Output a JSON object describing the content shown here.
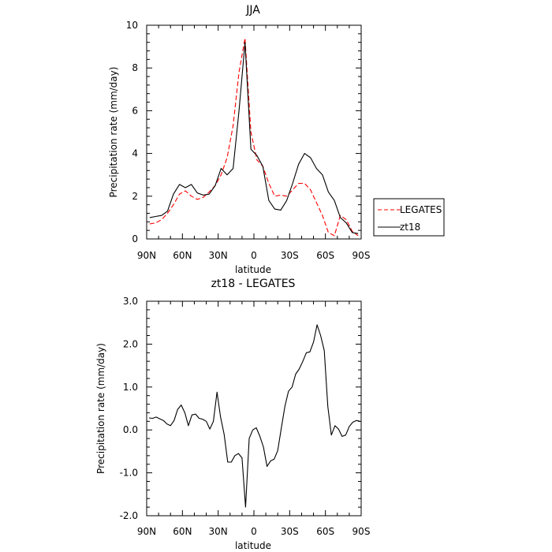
{
  "chart_data": [
    {
      "type": "line",
      "title": "JJA",
      "xlabel": "latitude",
      "ylabel": "Precipitation rate (mm/day)",
      "xlim": [
        90,
        -90
      ],
      "ylim": [
        0,
        10
      ],
      "xticks": [
        90,
        60,
        30,
        0,
        -30,
        -60,
        -90
      ],
      "xticklabels": [
        "90N",
        "60N",
        "30N",
        "0",
        "30S",
        "60S",
        "90S"
      ],
      "yticks": [
        0,
        2,
        4,
        6,
        8,
        10
      ],
      "yticklabels": [
        "0",
        "2",
        "4",
        "6",
        "8",
        "10"
      ],
      "legend_position": "right",
      "series": [
        {
          "name": "LEGATES",
          "color": "#ff0000",
          "style": "dashed",
          "x": [
            87.5,
            82.5,
            77.5,
            72.5,
            67.5,
            62.5,
            57.5,
            52.5,
            47.5,
            42.5,
            37.5,
            32.5,
            27.5,
            22.5,
            17.5,
            12.5,
            7.5,
            2.5,
            -2.5,
            -7.5,
            -12.5,
            -17.5,
            -22.5,
            -27.5,
            -32.5,
            -37.5,
            -42.5,
            -47.5,
            -52.5,
            -57.5,
            -62.5,
            -67.5,
            -72.5,
            -77.5,
            -82.5,
            -87.5
          ],
          "y": [
            0.7,
            0.75,
            0.9,
            1.2,
            1.6,
            2.1,
            2.25,
            2.0,
            1.85,
            1.95,
            2.2,
            2.5,
            3.0,
            3.8,
            5.3,
            7.8,
            9.4,
            5.0,
            3.7,
            3.4,
            2.6,
            2.0,
            2.05,
            2.0,
            2.3,
            2.6,
            2.6,
            2.3,
            1.7,
            1.1,
            0.3,
            0.15,
            1.1,
            0.9,
            0.35,
            0.15
          ]
        },
        {
          "name": "zt18",
          "color": "#000000",
          "style": "solid",
          "x": [
            87.5,
            82.5,
            77.5,
            72.5,
            67.5,
            62.5,
            57.5,
            52.5,
            47.5,
            42.5,
            37.5,
            32.5,
            27.5,
            22.5,
            17.5,
            12.5,
            7.5,
            2.5,
            -2.5,
            -7.5,
            -12.5,
            -17.5,
            -22.5,
            -27.5,
            -32.5,
            -37.5,
            -42.5,
            -47.5,
            -52.5,
            -57.5,
            -62.5,
            -67.5,
            -72.5,
            -77.5,
            -82.5,
            -87.5
          ],
          "y": [
            1.0,
            1.05,
            1.1,
            1.3,
            2.1,
            2.55,
            2.4,
            2.55,
            2.15,
            2.05,
            2.1,
            2.5,
            3.3,
            3.0,
            3.3,
            6.0,
            9.2,
            4.2,
            3.9,
            3.4,
            1.8,
            1.4,
            1.35,
            1.8,
            2.6,
            3.5,
            4.0,
            3.8,
            3.3,
            3.0,
            2.2,
            1.8,
            1.0,
            0.75,
            0.3,
            0.25
          ]
        }
      ]
    },
    {
      "type": "line",
      "title": "zt18 - LEGATES",
      "xlabel": "latitude",
      "ylabel": "Precipitation rate (mm/day)",
      "xlim": [
        90,
        -90
      ],
      "ylim": [
        -2,
        3
      ],
      "xticks": [
        90,
        60,
        30,
        0,
        -30,
        -60,
        -90
      ],
      "xticklabels": [
        "90N",
        "60N",
        "30N",
        "0",
        "30S",
        "60S",
        "90S"
      ],
      "yticks": [
        -2,
        -1,
        0,
        1,
        2,
        3
      ],
      "yticklabels": [
        "-2.0",
        "-1.0",
        "0.0",
        "1.0",
        "2.0",
        "3.0"
      ],
      "series": [
        {
          "color": "#000000",
          "style": "solid",
          "x": [
            88,
            85,
            82,
            79,
            76,
            73,
            70,
            67,
            64,
            61,
            58,
            55,
            52,
            49,
            46,
            43,
            40,
            37,
            34,
            31,
            28,
            25,
            22,
            19,
            16,
            13,
            10,
            7,
            4,
            1,
            -2,
            -5,
            -8,
            -11,
            -14,
            -17,
            -20,
            -23,
            -26,
            -29,
            -32,
            -35,
            -38,
            -41,
            -44,
            -47,
            -50,
            -53,
            -56,
            -59,
            -62,
            -65,
            -68,
            -71,
            -74,
            -77,
            -80,
            -83,
            -86,
            -89
          ],
          "y": [
            0.28,
            0.27,
            0.3,
            0.26,
            0.22,
            0.14,
            0.1,
            0.22,
            0.48,
            0.58,
            0.4,
            0.1,
            0.35,
            0.37,
            0.27,
            0.25,
            0.2,
            0.02,
            0.2,
            0.88,
            0.3,
            -0.1,
            -0.75,
            -0.75,
            -0.6,
            -0.55,
            -0.65,
            -1.8,
            -0.2,
            0.0,
            0.05,
            -0.15,
            -0.4,
            -0.85,
            -0.72,
            -0.68,
            -0.48,
            0.05,
            0.55,
            0.9,
            1.0,
            1.3,
            1.42,
            1.6,
            1.8,
            1.82,
            2.05,
            2.45,
            2.2,
            1.85,
            0.55,
            -0.12,
            0.1,
            0.02,
            -0.15,
            -0.12,
            0.08,
            0.18,
            0.22,
            0.2
          ]
        }
      ]
    }
  ]
}
